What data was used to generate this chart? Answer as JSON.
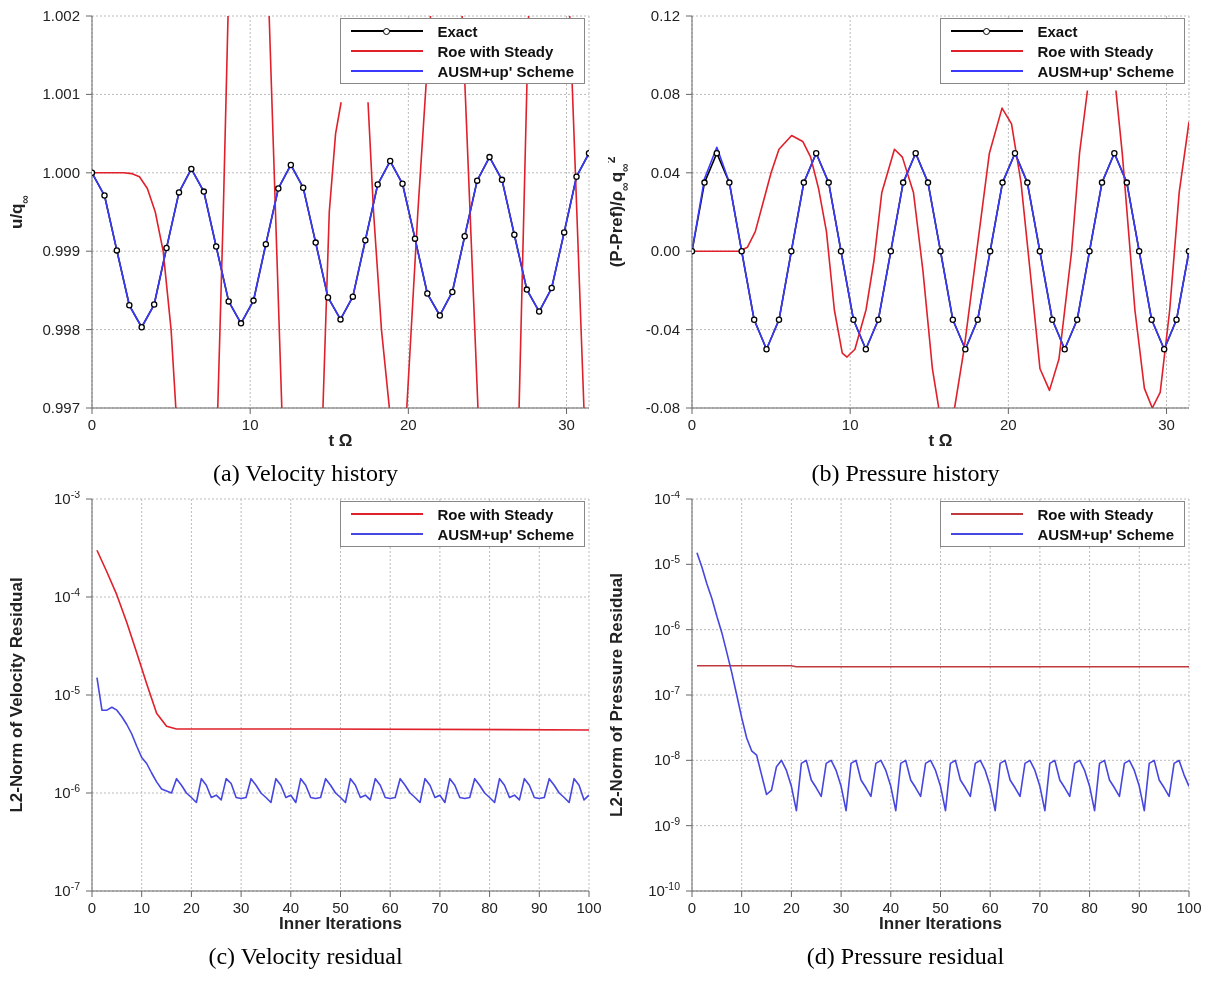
{
  "chart_data": [
    {
      "type": "line",
      "title": "(a) Velocity history",
      "xlabel": "t Ω",
      "ylabel": "u/q$_{∞}$",
      "xlim": [
        0,
        31.42
      ],
      "xticks": [
        0,
        10,
        20,
        30
      ],
      "ylim": [
        0.997,
        1.002
      ],
      "yticks": [
        0.997,
        0.998,
        0.999,
        {
          "value": 1,
          "label": "1.000"
        },
        1.001,
        1.002
      ],
      "grid": true,
      "legend": "top right",
      "series": [
        {
          "name": "Exact",
          "color": "#000000",
          "marker": "circle",
          "x": [
            0,
            0.79,
            1.57,
            2.36,
            3.14,
            3.93,
            4.71,
            5.5,
            6.28,
            7.07,
            7.85,
            8.64,
            9.42,
            10.21,
            10.99,
            11.78,
            12.57,
            13.35,
            14.14,
            14.92,
            15.71,
            16.49,
            17.28,
            18.06,
            18.85,
            19.63,
            20.42,
            21.2,
            21.99,
            22.78,
            23.56,
            24.35,
            25.13,
            25.92,
            26.7,
            27.49,
            28.27,
            29.06,
            29.85,
            30.63,
            31.42
          ],
          "values": [
            1.0,
            0.99971,
            0.99901,
            0.99831,
            0.99803,
            0.99832,
            0.99904,
            0.99975,
            1.00005,
            0.99976,
            0.99906,
            0.99836,
            0.99808,
            0.99837,
            0.99909,
            0.9998,
            1.0001,
            0.99981,
            0.99911,
            0.99841,
            0.99813,
            0.99842,
            0.99914,
            0.99985,
            1.00015,
            0.99986,
            0.99916,
            0.99846,
            0.99818,
            0.99848,
            0.99919,
            0.9999,
            1.0002,
            0.99991,
            0.99921,
            0.99851,
            0.99823,
            0.99853,
            0.99924,
            0.99995,
            1.00025
          ]
        },
        {
          "name": "Roe with Steady",
          "color": "#e0202a",
          "marker": "none",
          "x": [
            0,
            1,
            2,
            2.5,
            3,
            3.5,
            4,
            4.5,
            5,
            5.3,
            6.5,
            7.95,
            8.3,
            8.6,
            10,
            11.2,
            11.6,
            12.0,
            13.3,
            14.6,
            15.0,
            15.4,
            15.75,
            16.6,
            17.45,
            17.8,
            18.3,
            18.8,
            19.4,
            19.9,
            20.6,
            21.4,
            22.4,
            23.4,
            23.9,
            24.4,
            25.7,
            27.0,
            27.3,
            27.6,
            28.9,
            30.2,
            30.65,
            31.1
          ],
          "values": [
            1.0,
            1.0,
            1.0,
            0.99999,
            0.99995,
            0.9998,
            0.9995,
            0.999,
            0.998,
            0.997,
            null,
            0.997,
            0.9995,
            1.002,
            null,
            1.002,
            0.9995,
            0.997,
            null,
            0.997,
            0.9995,
            1.0005,
            1.0009,
            null,
            1.0009,
            0.9995,
            0.998,
            0.997,
            null,
            0.997,
            0.9995,
            1.002,
            null,
            1.002,
            0.9995,
            0.997,
            null,
            0.997,
            0.9995,
            1.002,
            null,
            1.002,
            0.9995,
            0.997
          ]
        },
        {
          "name": "AUSM+up' Scheme",
          "color": "#3a3aff",
          "marker": "none",
          "x": [
            0,
            0.79,
            1.57,
            2.36,
            3.14,
            3.93,
            4.71,
            5.5,
            6.28,
            7.07,
            7.85,
            8.64,
            9.42,
            10.21,
            10.99,
            11.78,
            12.57,
            13.35,
            14.14,
            14.92,
            15.71,
            16.49,
            17.28,
            18.06,
            18.85,
            19.63,
            20.42,
            21.2,
            21.99,
            22.78,
            23.56,
            24.35,
            25.13,
            25.92,
            26.7,
            27.49,
            28.27,
            29.06,
            29.85,
            30.63,
            31.42
          ],
          "values": [
            1.0,
            0.99971,
            0.99901,
            0.99831,
            0.99803,
            0.99832,
            0.99904,
            0.99975,
            1.00005,
            0.99976,
            0.99906,
            0.99836,
            0.99808,
            0.99837,
            0.99909,
            0.9998,
            1.0001,
            0.99981,
            0.99911,
            0.99841,
            0.99813,
            0.99842,
            0.99914,
            0.99985,
            1.00015,
            0.99986,
            0.99916,
            0.99846,
            0.99818,
            0.99848,
            0.99919,
            0.9999,
            1.0002,
            0.99991,
            0.99921,
            0.99851,
            0.99823,
            0.99853,
            0.99924,
            0.99995,
            1.00025
          ]
        }
      ]
    },
    {
      "type": "line",
      "title": "(b) Pressure history",
      "xlabel": "t Ω",
      "ylabel": "(P-Pref)/ρ$_{∞}$q$_{∞}$$^{2}$",
      "xlim": [
        0,
        31.42
      ],
      "xticks": [
        0,
        10,
        20,
        30
      ],
      "ylim": [
        -0.08,
        0.12
      ],
      "yticks": [
        -0.08,
        -0.04,
        {
          "value": 0,
          "label": "0.00"
        },
        0.04,
        0.08,
        0.12
      ],
      "grid": true,
      "legend": "top right",
      "series": [
        {
          "name": "Exact",
          "color": "#000000",
          "marker": "circle",
          "x": [
            0,
            0.79,
            1.57,
            2.36,
            3.14,
            3.93,
            4.71,
            5.5,
            6.28,
            7.07,
            7.85,
            8.64,
            9.42,
            10.21,
            10.99,
            11.78,
            12.57,
            13.35,
            14.14,
            14.92,
            15.71,
            16.49,
            17.28,
            18.06,
            18.85,
            19.63,
            20.42,
            21.2,
            21.99,
            22.78,
            23.56,
            24.35,
            25.13,
            25.92,
            26.7,
            27.49,
            28.27,
            29.06,
            29.85,
            30.63,
            31.42
          ],
          "values": [
            0,
            0.035,
            0.05,
            0.035,
            0,
            -0.035,
            -0.05,
            -0.035,
            0,
            0.035,
            0.05,
            0.035,
            0,
            -0.035,
            -0.05,
            -0.035,
            0,
            0.035,
            0.05,
            0.035,
            0,
            -0.035,
            -0.05,
            -0.035,
            0,
            0.035,
            0.05,
            0.035,
            0,
            -0.035,
            -0.05,
            -0.035,
            0,
            0.035,
            0.05,
            0.035,
            0,
            -0.035,
            -0.05,
            -0.035,
            0
          ]
        },
        {
          "name": "Roe with Steady",
          "color": "#e0202a",
          "marker": "none",
          "x": [
            0,
            1,
            2,
            3,
            3.5,
            4,
            4.5,
            5,
            5.5,
            6.3,
            7,
            7.5,
            8,
            8.5,
            9,
            9.5,
            9.8,
            10.3,
            11,
            11.5,
            12,
            12.8,
            13.3,
            14,
            14.6,
            15.2,
            15.6,
            16.1,
            16.6,
            17.2,
            18,
            18.8,
            19.6,
            20.2,
            20.8,
            21.5,
            22,
            22.6,
            23.2,
            24,
            24.5,
            25.0,
            25.9,
            26.8,
            27.2,
            28,
            28.6,
            29.1,
            29.6,
            30.2,
            30.8,
            31.42
          ],
          "values": [
            0,
            0,
            0,
            0,
            0.002,
            0.01,
            0.025,
            0.04,
            0.052,
            0.059,
            0.056,
            0.048,
            0.032,
            0.01,
            -0.03,
            -0.052,
            -0.054,
            -0.05,
            -0.03,
            -0.005,
            0.03,
            0.052,
            0.048,
            0.03,
            -0.01,
            -0.06,
            -0.08,
            null,
            -0.08,
            -0.05,
            0,
            0.05,
            0.073,
            0.065,
            0.035,
            -0.02,
            -0.06,
            -0.071,
            -0.055,
            0,
            0.05,
            0.082,
            null,
            0.082,
            0.05,
            -0.03,
            -0.07,
            -0.08,
            -0.072,
            -0.03,
            0.03,
            0.066
          ]
        },
        {
          "name": "AUSM+up' Scheme",
          "color": "#3a3aff",
          "marker": "none",
          "x": [
            0,
            0.79,
            1.57,
            2.36,
            3.14,
            3.93,
            4.71,
            5.5,
            6.28,
            7.07,
            7.85,
            8.64,
            9.42,
            10.21,
            10.99,
            11.78,
            12.57,
            13.35,
            14.14,
            14.92,
            15.71,
            16.49,
            17.28,
            18.06,
            18.85,
            19.63,
            20.42,
            21.2,
            21.99,
            22.78,
            23.56,
            24.35,
            25.13,
            25.92,
            26.7,
            27.49,
            28.27,
            29.06,
            29.85,
            30.63,
            31.42
          ],
          "values": [
            0,
            0.037,
            0.053,
            0.035,
            0,
            -0.035,
            -0.05,
            -0.035,
            0,
            0.035,
            0.05,
            0.035,
            0,
            -0.035,
            -0.05,
            -0.035,
            0,
            0.035,
            0.05,
            0.035,
            0,
            -0.035,
            -0.05,
            -0.035,
            0,
            0.035,
            0.05,
            0.035,
            0,
            -0.035,
            -0.05,
            -0.035,
            0,
            0.035,
            0.05,
            0.035,
            0,
            -0.035,
            -0.05,
            -0.035,
            0
          ]
        }
      ]
    },
    {
      "type": "line",
      "title": "(c) Velocity residual",
      "xlabel": "Inner Iterations",
      "ylabel": "L2-Norm of Velocity Residual",
      "log": "y",
      "xlim": [
        0,
        100
      ],
      "xticks": [
        0,
        10,
        20,
        30,
        40,
        50,
        60,
        70,
        80,
        90,
        100
      ],
      "ylim": [
        1e-07,
        0.001
      ],
      "yticks": [
        {
          "value": 1e-07,
          "label": "10$^{-7}$"
        },
        {
          "value": 1e-06,
          "label": "10$^{-6}$"
        },
        {
          "value": 1e-05,
          "label": "10$^{-5}$"
        },
        {
          "value": 0.0001,
          "label": "10$^{-4}$"
        },
        {
          "value": 0.001,
          "label": "10$^{-3}$"
        }
      ],
      "grid": true,
      "legend": "top right",
      "series": [
        {
          "name": "Roe with Steady",
          "color": "#e0202a",
          "marker": "none",
          "x": [
            1,
            3,
            5,
            7,
            9,
            11,
            13,
            15,
            17,
            45,
            100
          ],
          "values": [
            0.0003,
            0.00018,
            0.000105,
            5.5e-05,
            2.7e-05,
            1.3e-05,
            6.5e-06,
            4.8e-06,
            4.5e-06,
            4.5e-06,
            4.4e-06
          ]
        },
        {
          "name": "AUSM+up' Scheme",
          "color": "#4646e0",
          "marker": "none",
          "x": [
            1,
            2,
            3,
            4,
            5,
            6,
            7,
            8,
            9,
            10,
            11,
            12,
            13,
            14,
            15,
            16,
            17,
            18,
            19,
            20,
            21,
            22,
            23,
            24,
            25,
            26,
            27,
            28,
            29,
            30,
            31,
            32,
            33,
            34,
            35,
            36,
            37,
            38,
            39,
            40,
            41,
            42,
            43,
            44,
            45,
            46,
            47,
            48,
            49,
            50,
            51,
            52,
            53,
            54,
            55,
            56,
            57,
            58,
            59,
            60,
            61,
            62,
            63,
            64,
            65,
            66,
            67,
            68,
            69,
            70,
            71,
            72,
            73,
            74,
            75,
            76,
            77,
            78,
            79,
            80,
            81,
            82,
            83,
            84,
            85,
            86,
            87,
            88,
            89,
            90,
            91,
            92,
            93,
            94,
            95,
            96,
            97,
            98,
            99,
            100
          ],
          "values": [
            1.5e-05,
            7e-06,
            7e-06,
            7.5e-06,
            7e-06,
            6e-06,
            5e-06,
            4e-06,
            3e-06,
            2.3e-06,
            2e-06,
            1.6e-06,
            1.3e-06,
            1.1e-06,
            1.05e-06,
            1e-06,
            1.4e-06,
            1.2e-06,
            1e-06,
            9e-07,
            8e-07,
            1.4e-06,
            1.2e-06,
            9e-07,
            9.5e-07,
            8.5e-07,
            1.4e-06,
            1.25e-06,
            9e-07,
            8.8e-07,
            9e-07,
            1.4e-06,
            1.2e-06,
            1e-06,
            9e-07,
            8e-07,
            1.4e-06,
            1.2e-06,
            9e-07,
            9.5e-07,
            8e-07,
            1.4e-06,
            1.2e-06,
            9e-07,
            8.8e-07,
            9e-07,
            1.4e-06,
            1.2e-06,
            1e-06,
            9e-07,
            8e-07,
            1.4e-06,
            1.2e-06,
            9e-07,
            9.5e-07,
            8.5e-07,
            1.4e-06,
            1.2e-06,
            9e-07,
            8.8e-07,
            9e-07,
            1.4e-06,
            1.2e-06,
            1e-06,
            9e-07,
            8e-07,
            1.4e-06,
            1.2e-06,
            9e-07,
            9.5e-07,
            8e-07,
            1.4e-06,
            1.2e-06,
            9e-07,
            8.8e-07,
            9e-07,
            1.4e-06,
            1.2e-06,
            1e-06,
            9e-07,
            8e-07,
            1.4e-06,
            1.2e-06,
            9e-07,
            9.5e-07,
            8.5e-07,
            1.4e-06,
            1.2e-06,
            9e-07,
            8.8e-07,
            9e-07,
            1.4e-06,
            1.2e-06,
            1e-06,
            9e-07,
            8e-07,
            1.4e-06,
            1.2e-06,
            8.5e-07,
            9.5e-07
          ]
        }
      ]
    },
    {
      "type": "line",
      "title": "(d) Pressure residual",
      "xlabel": "Inner Iterations",
      "ylabel": "L2-Norm of Pressure Residual",
      "log": "y",
      "xlim": [
        0,
        100
      ],
      "xticks": [
        0,
        10,
        20,
        30,
        40,
        50,
        60,
        70,
        80,
        90,
        100
      ],
      "ylim": [
        1e-10,
        0.0001
      ],
      "yticks": [
        {
          "value": 1e-10,
          "label": "10$^{-10}$"
        },
        {
          "value": 1e-09,
          "label": "10$^{-9}$"
        },
        {
          "value": 1e-08,
          "label": "10$^{-8}$"
        },
        {
          "value": 1e-07,
          "label": "10$^{-7}$"
        },
        {
          "value": 1e-06,
          "label": "10$^{-6}$"
        },
        {
          "value": 1e-05,
          "label": "10$^{-5}$"
        },
        {
          "value": 0.0001,
          "label": "10$^{-4}$"
        }
      ],
      "grid": true,
      "legend": "top right",
      "series": [
        {
          "name": "Roe with Steady",
          "color": "#c0393f",
          "marker": "none",
          "x": [
            1,
            20,
            21,
            100
          ],
          "values": [
            2.8e-07,
            2.8e-07,
            2.7e-07,
            2.7e-07
          ]
        },
        {
          "name": "AUSM+up' Scheme",
          "color": "#4646e0",
          "marker": "none",
          "x": [
            1,
            2,
            3,
            4,
            5,
            6,
            7,
            8,
            9,
            10,
            11,
            12,
            13,
            14,
            15,
            16,
            17,
            18,
            19,
            20,
            21,
            22,
            23,
            24,
            25,
            26,
            27,
            28,
            29,
            30,
            31,
            32,
            33,
            34,
            35,
            36,
            37,
            38,
            39,
            40,
            41,
            42,
            43,
            44,
            45,
            46,
            47,
            48,
            49,
            50,
            51,
            52,
            53,
            54,
            55,
            56,
            57,
            58,
            59,
            60,
            61,
            62,
            63,
            64,
            65,
            66,
            67,
            68,
            69,
            70,
            71,
            72,
            73,
            74,
            75,
            76,
            77,
            78,
            79,
            80,
            81,
            82,
            83,
            84,
            85,
            86,
            87,
            88,
            89,
            90,
            91,
            92,
            93,
            94,
            95,
            96,
            97,
            98,
            99,
            100
          ],
          "values": [
            1.5e-05,
            9e-06,
            5e-06,
            3e-06,
            1.6e-06,
            9e-07,
            4.5e-07,
            2.2e-07,
            1e-07,
            4.5e-08,
            2.2e-08,
            1.4e-08,
            1.2e-08,
            6e-09,
            3e-09,
            3.5e-09,
            8e-09,
            1e-08,
            7e-09,
            4e-09,
            1.7e-09,
            9e-09,
            1e-08,
            5e-09,
            3.8e-09,
            2.8e-09,
            9e-09,
            1e-08,
            7e-09,
            4e-09,
            1.7e-09,
            9e-09,
            1e-08,
            5e-09,
            3.8e-09,
            2.8e-09,
            9e-09,
            1e-08,
            7e-09,
            4e-09,
            1.7e-09,
            9e-09,
            1e-08,
            5e-09,
            3.8e-09,
            2.8e-09,
            9e-09,
            1e-08,
            7e-09,
            4e-09,
            1.7e-09,
            9e-09,
            1e-08,
            5e-09,
            3.8e-09,
            2.8e-09,
            9e-09,
            1e-08,
            7e-09,
            4e-09,
            1.7e-09,
            9e-09,
            1e-08,
            5e-09,
            3.8e-09,
            2.8e-09,
            9e-09,
            1e-08,
            7e-09,
            4e-09,
            1.7e-09,
            9e-09,
            1e-08,
            5e-09,
            3.8e-09,
            2.8e-09,
            9e-09,
            1e-08,
            7e-09,
            4e-09,
            1.7e-09,
            9e-09,
            1e-08,
            5e-09,
            3.8e-09,
            2.8e-09,
            9e-09,
            1e-08,
            7e-09,
            4e-09,
            1.7e-09,
            9e-09,
            1e-08,
            5e-09,
            3.8e-09,
            2.8e-09,
            9e-09,
            1e-08,
            6e-09,
            4e-09
          ]
        }
      ]
    }
  ]
}
